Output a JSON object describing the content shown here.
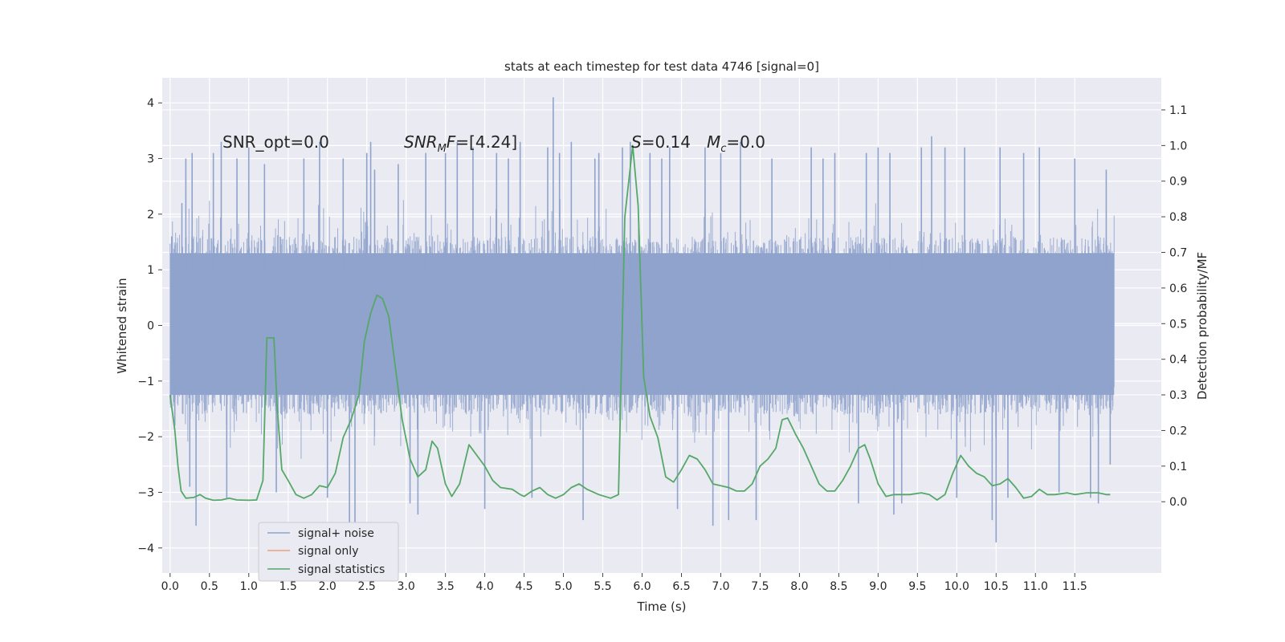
{
  "chart_data": {
    "type": "line",
    "title": "stats at each timestep for test data 4746 [signal=0]",
    "xlabel": "Time (s)",
    "ylabel_left": "Whitened strain",
    "ylabel_right": "Detection probability/MF",
    "xlim": [
      -0.1,
      12.6
    ],
    "ylim_left": [
      -4.45,
      4.45
    ],
    "ylim_right": [
      -0.2,
      1.19
    ],
    "x_ticks": [
      0.0,
      0.5,
      1.0,
      1.5,
      2.0,
      2.5,
      3.0,
      3.5,
      4.0,
      4.5,
      5.0,
      5.5,
      6.0,
      6.5,
      7.0,
      7.5,
      8.0,
      8.5,
      9.0,
      9.5,
      10.0,
      10.5,
      11.0,
      11.5
    ],
    "x_tick_labels": [
      "0.0",
      "0.5",
      "1.0",
      "1.5",
      "2.0",
      "2.5",
      "3.0",
      "3.5",
      "4.0",
      "4.5",
      "5.0",
      "5.5",
      "6.0",
      "6.5",
      "7.0",
      "7.5",
      "8.0",
      "8.5",
      "9.0",
      "9.5",
      "10.0",
      "10.5",
      "11.0",
      "11.5"
    ],
    "y_left_ticks": [
      4,
      3,
      2,
      1,
      0,
      -1,
      -2,
      -3,
      -4
    ],
    "y_left_tick_labels": [
      "4",
      "3",
      "2",
      "1",
      "0",
      "−1",
      "−2",
      "−3",
      "−4"
    ],
    "y_right_ticks": [
      1.1,
      1.0,
      0.9,
      0.8,
      0.7,
      0.6,
      0.5,
      0.4,
      0.3,
      0.2,
      0.1,
      0.0
    ],
    "y_right_tick_labels": [
      "1.1",
      "1.0",
      "0.9",
      "0.8",
      "0.7",
      "0.6",
      "0.5",
      "0.4",
      "0.3",
      "0.2",
      "0.1",
      "0.0"
    ],
    "grid": true,
    "legend_position": "bottom-left",
    "annotations": {
      "snr_opt": "SNR_opt=0.0",
      "snr_mf_main": "SNR",
      "snr_mf_sub": "M",
      "snr_mf_tail": "F=[4.24]",
      "s_main": "S",
      "s_tail": "=0.14",
      "mc_main": "M",
      "mc_sub": "c",
      "mc_tail": "=0.0"
    },
    "series": [
      {
        "name": "signal+ noise",
        "color": "#8fa3cc",
        "axis": "left",
        "x_range": [
          0.0,
          12.0
        ],
        "band_core": [
          -1.25,
          1.3
        ],
        "envelope_peaks": [
          [
            0.02,
            1.6
          ],
          [
            0.06,
            -1.8
          ],
          [
            0.15,
            2.2
          ],
          [
            0.2,
            3.0
          ],
          [
            0.25,
            -2.9
          ],
          [
            0.28,
            3.1
          ],
          [
            0.33,
            -3.6
          ],
          [
            0.55,
            3.1
          ],
          [
            0.65,
            3.3
          ],
          [
            0.72,
            -3.1
          ],
          [
            0.85,
            3.0
          ],
          [
            1.0,
            3.2
          ],
          [
            1.2,
            2.9
          ],
          [
            1.35,
            -3.0
          ],
          [
            1.7,
            3.0
          ],
          [
            1.9,
            3.3
          ],
          [
            2.0,
            -3.1
          ],
          [
            2.2,
            3.0
          ],
          [
            2.28,
            -3.7
          ],
          [
            2.35,
            -4.0
          ],
          [
            2.5,
            3.1
          ],
          [
            2.55,
            3.3
          ],
          [
            2.6,
            2.8
          ],
          [
            2.9,
            2.9
          ],
          [
            3.05,
            -3.2
          ],
          [
            3.15,
            -3.4
          ],
          [
            3.25,
            3.1
          ],
          [
            3.5,
            3.1
          ],
          [
            3.65,
            3.3
          ],
          [
            3.85,
            3.2
          ],
          [
            4.0,
            -3.3
          ],
          [
            4.15,
            3.1
          ],
          [
            4.3,
            3.0
          ],
          [
            4.45,
            3.3
          ],
          [
            4.6,
            -3.1
          ],
          [
            4.8,
            3.2
          ],
          [
            4.87,
            4.1
          ],
          [
            4.95,
            3.1
          ],
          [
            5.1,
            3.3
          ],
          [
            5.25,
            -3.5
          ],
          [
            5.4,
            3.0
          ],
          [
            5.45,
            3.1
          ],
          [
            5.75,
            3.2
          ],
          [
            5.85,
            3.3
          ],
          [
            6.1,
            3.1
          ],
          [
            6.25,
            3.0
          ],
          [
            6.35,
            3.2
          ],
          [
            6.45,
            -3.3
          ],
          [
            6.8,
            3.2
          ],
          [
            6.9,
            -3.6
          ],
          [
            7.0,
            3.1
          ],
          [
            7.1,
            -3.5
          ],
          [
            7.25,
            3.3
          ],
          [
            7.45,
            -3.5
          ],
          [
            7.65,
            3.0
          ],
          [
            8.15,
            3.2
          ],
          [
            8.3,
            3.0
          ],
          [
            8.45,
            3.1
          ],
          [
            8.75,
            -3.2
          ],
          [
            8.85,
            3.1
          ],
          [
            9.0,
            3.2
          ],
          [
            9.15,
            3.1
          ],
          [
            9.2,
            -3.4
          ],
          [
            9.3,
            -3.2
          ],
          [
            9.55,
            3.2
          ],
          [
            9.68,
            3.4
          ],
          [
            9.85,
            3.2
          ],
          [
            10.0,
            -3.1
          ],
          [
            10.1,
            3.2
          ],
          [
            10.45,
            -3.5
          ],
          [
            10.5,
            -3.9
          ],
          [
            10.55,
            3.2
          ],
          [
            10.65,
            -3.1
          ],
          [
            10.85,
            3.1
          ],
          [
            11.05,
            3.2
          ],
          [
            11.3,
            -3.0
          ],
          [
            11.5,
            3.0
          ],
          [
            11.7,
            -3.1
          ],
          [
            11.8,
            -3.2
          ],
          [
            11.9,
            2.8
          ],
          [
            11.95,
            -2.5
          ]
        ]
      },
      {
        "name": "signal only",
        "color": "#e99f80",
        "axis": "left",
        "points": []
      },
      {
        "name": "signal statistics",
        "color": "#55a868",
        "axis": "right",
        "points": [
          [
            0.0,
            0.3
          ],
          [
            0.06,
            0.2
          ],
          [
            0.1,
            0.1
          ],
          [
            0.14,
            0.03
          ],
          [
            0.2,
            0.01
          ],
          [
            0.3,
            0.012
          ],
          [
            0.38,
            0.02
          ],
          [
            0.45,
            0.01
          ],
          [
            0.55,
            0.004
          ],
          [
            0.65,
            0.005
          ],
          [
            0.75,
            0.01
          ],
          [
            0.85,
            0.005
          ],
          [
            1.0,
            0.004
          ],
          [
            1.1,
            0.005
          ],
          [
            1.18,
            0.06
          ],
          [
            1.23,
            0.46
          ],
          [
            1.32,
            0.46
          ],
          [
            1.36,
            0.27
          ],
          [
            1.42,
            0.09
          ],
          [
            1.5,
            0.06
          ],
          [
            1.6,
            0.02
          ],
          [
            1.7,
            0.01
          ],
          [
            1.8,
            0.02
          ],
          [
            1.9,
            0.045
          ],
          [
            2.0,
            0.04
          ],
          [
            2.1,
            0.08
          ],
          [
            2.2,
            0.18
          ],
          [
            2.3,
            0.23
          ],
          [
            2.4,
            0.3
          ],
          [
            2.47,
            0.45
          ],
          [
            2.55,
            0.53
          ],
          [
            2.63,
            0.58
          ],
          [
            2.7,
            0.57
          ],
          [
            2.78,
            0.52
          ],
          [
            2.85,
            0.4
          ],
          [
            2.95,
            0.23
          ],
          [
            3.05,
            0.12
          ],
          [
            3.15,
            0.07
          ],
          [
            3.25,
            0.09
          ],
          [
            3.33,
            0.17
          ],
          [
            3.4,
            0.15
          ],
          [
            3.5,
            0.05
          ],
          [
            3.58,
            0.015
          ],
          [
            3.68,
            0.05
          ],
          [
            3.8,
            0.16
          ],
          [
            3.9,
            0.13
          ],
          [
            4.0,
            0.1
          ],
          [
            4.1,
            0.06
          ],
          [
            4.2,
            0.04
          ],
          [
            4.35,
            0.035
          ],
          [
            4.45,
            0.02
          ],
          [
            4.5,
            0.015
          ],
          [
            4.6,
            0.03
          ],
          [
            4.7,
            0.04
          ],
          [
            4.8,
            0.02
          ],
          [
            4.9,
            0.01
          ],
          [
            5.0,
            0.02
          ],
          [
            5.1,
            0.04
          ],
          [
            5.2,
            0.05
          ],
          [
            5.3,
            0.035
          ],
          [
            5.45,
            0.02
          ],
          [
            5.6,
            0.01
          ],
          [
            5.7,
            0.02
          ],
          [
            5.78,
            0.8
          ],
          [
            5.88,
            1.0
          ],
          [
            5.95,
            0.83
          ],
          [
            6.02,
            0.35
          ],
          [
            6.1,
            0.24
          ],
          [
            6.2,
            0.18
          ],
          [
            6.3,
            0.07
          ],
          [
            6.4,
            0.055
          ],
          [
            6.5,
            0.09
          ],
          [
            6.6,
            0.13
          ],
          [
            6.7,
            0.12
          ],
          [
            6.8,
            0.09
          ],
          [
            6.9,
            0.05
          ],
          [
            7.0,
            0.045
          ],
          [
            7.1,
            0.04
          ],
          [
            7.2,
            0.03
          ],
          [
            7.3,
            0.03
          ],
          [
            7.4,
            0.05
          ],
          [
            7.5,
            0.1
          ],
          [
            7.6,
            0.12
          ],
          [
            7.7,
            0.15
          ],
          [
            7.78,
            0.23
          ],
          [
            7.85,
            0.235
          ],
          [
            7.95,
            0.19
          ],
          [
            8.05,
            0.15
          ],
          [
            8.15,
            0.1
          ],
          [
            8.25,
            0.05
          ],
          [
            8.35,
            0.03
          ],
          [
            8.45,
            0.03
          ],
          [
            8.55,
            0.06
          ],
          [
            8.65,
            0.1
          ],
          [
            8.75,
            0.15
          ],
          [
            8.83,
            0.16
          ],
          [
            8.9,
            0.12
          ],
          [
            9.0,
            0.05
          ],
          [
            9.1,
            0.015
          ],
          [
            9.2,
            0.02
          ],
          [
            9.3,
            0.02
          ],
          [
            9.4,
            0.02
          ],
          [
            9.55,
            0.025
          ],
          [
            9.65,
            0.02
          ],
          [
            9.75,
            0.005
          ],
          [
            9.85,
            0.02
          ],
          [
            9.95,
            0.08
          ],
          [
            10.05,
            0.13
          ],
          [
            10.15,
            0.1
          ],
          [
            10.25,
            0.08
          ],
          [
            10.35,
            0.07
          ],
          [
            10.45,
            0.045
          ],
          [
            10.55,
            0.05
          ],
          [
            10.65,
            0.065
          ],
          [
            10.75,
            0.04
          ],
          [
            10.85,
            0.01
          ],
          [
            10.95,
            0.015
          ],
          [
            11.05,
            0.035
          ],
          [
            11.15,
            0.02
          ],
          [
            11.25,
            0.02
          ],
          [
            11.4,
            0.025
          ],
          [
            11.5,
            0.02
          ],
          [
            11.65,
            0.025
          ],
          [
            11.8,
            0.025
          ],
          [
            11.9,
            0.02
          ],
          [
            11.95,
            0.02
          ]
        ]
      }
    ]
  }
}
